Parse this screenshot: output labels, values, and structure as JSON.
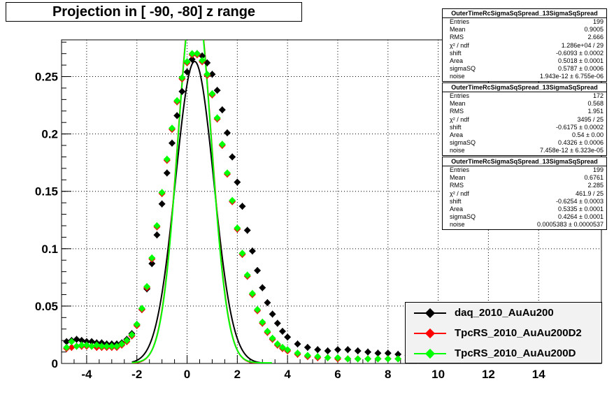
{
  "title": "Projection in [ -90, -80] z range",
  "stats": [
    {
      "name": "OuterTimeRcSigmaSqSpread_13SigmaSqSpread",
      "rows": [
        [
          "Entries",
          "199"
        ],
        [
          "Mean",
          "0.9005"
        ],
        [
          "RMS",
          "2.666"
        ],
        [
          "χ² / ndf",
          "1.286e+04 / 29"
        ],
        [
          "shift",
          "-0.6093 ± 0.0002"
        ],
        [
          "Area",
          "0.5018 ± 0.0001"
        ],
        [
          "sigmaSQ",
          "0.5787 ± 0.0006"
        ],
        [
          "noise",
          "1.943e-12 ± 6.755e-06"
        ]
      ]
    },
    {
      "name": "OuterTimeRcSigmaSqSpread_13SigmaSqSpread",
      "rows": [
        [
          "Entries",
          "172"
        ],
        [
          "Mean",
          "0.568"
        ],
        [
          "RMS",
          "1.951"
        ],
        [
          "χ² / ndf",
          "3495 / 25"
        ],
        [
          "shift",
          "-0.6175 ± 0.0002"
        ],
        [
          "Area",
          "0.54 ± 0.00"
        ],
        [
          "sigmaSQ",
          "0.4326 ± 0.0006"
        ],
        [
          "noise",
          "7.458e-12 ± 6.323e-05"
        ]
      ]
    },
    {
      "name": "OuterTimeRcSigmaSqSpread_13SigmaSqSpread",
      "rows": [
        [
          "Entries",
          "199"
        ],
        [
          "Mean",
          "0.6761"
        ],
        [
          "RMS",
          "2.285"
        ],
        [
          "χ² / ndf",
          "461.9 / 25"
        ],
        [
          "shift",
          "-0.6254 ± 0.0003"
        ],
        [
          "Area",
          "0.5335 ± 0.0001"
        ],
        [
          "sigmaSQ",
          "0.4264 ± 0.0001"
        ],
        [
          "noise",
          "0.0005383 ± 0.0000537"
        ]
      ]
    }
  ],
  "legend": [
    {
      "label": "daq_2010_AuAu200",
      "color": "#000000"
    },
    {
      "label": "TpcRS_2010_AuAu200D2",
      "color": "#ff0000"
    },
    {
      "label": "TpcRS_2010_AuAu200D",
      "color": "#00ff00"
    }
  ],
  "chart_data": {
    "type": "scatter",
    "title": "Projection in [ -90, -80] z range",
    "xlim": [
      -5,
      16.5
    ],
    "ylim": [
      0,
      0.282
    ],
    "xticks": [
      "-4",
      "-2",
      "0",
      "2",
      "4",
      "6",
      "8",
      "10",
      "12",
      "14"
    ],
    "yticks": [
      "0",
      "0.05",
      "0.1",
      "0.15",
      "0.2",
      "0.25"
    ],
    "grid": true,
    "legend_position": "bottom-right",
    "series": [
      {
        "name": "daq_2010_AuAu200",
        "color": "#000000",
        "x": [
          -4.8,
          -4.6,
          -4.4,
          -4.2,
          -4.0,
          -3.8,
          -3.6,
          -3.4,
          -3.2,
          -3.0,
          -2.8,
          -2.6,
          -2.4,
          -2.2,
          -2.0,
          -1.8,
          -1.6,
          -1.4,
          -1.2,
          -1.0,
          -0.8,
          -0.6,
          -0.4,
          -0.2,
          0.0,
          0.2,
          0.4,
          0.6,
          0.8,
          1.0,
          1.2,
          1.4,
          1.6,
          1.8,
          2.0,
          2.2,
          2.4,
          2.6,
          2.8,
          3.0,
          3.2,
          3.4,
          3.6,
          3.8,
          4.0,
          4.4,
          4.8,
          5.2,
          5.6,
          6.0,
          6.4,
          6.8,
          7.2,
          7.6,
          8.0,
          8.4,
          8.8,
          9.2,
          9.6
        ],
        "y": [
          0.019,
          0.02,
          0.021,
          0.02,
          0.019,
          0.019,
          0.018,
          0.018,
          0.017,
          0.017,
          0.017,
          0.018,
          0.021,
          0.026,
          0.034,
          0.047,
          0.065,
          0.087,
          0.112,
          0.139,
          0.166,
          0.192,
          0.216,
          0.237,
          0.254,
          0.265,
          0.27,
          0.268,
          0.262,
          0.252,
          0.238,
          0.221,
          0.201,
          0.18,
          0.158,
          0.137,
          0.116,
          0.098,
          0.081,
          0.066,
          0.053,
          0.043,
          0.035,
          0.028,
          0.023,
          0.017,
          0.014,
          0.012,
          0.011,
          0.012,
          0.012,
          0.011,
          0.01,
          0.009,
          0.009,
          0.008,
          0.007,
          0.006,
          0.006
        ]
      },
      {
        "name": "TpcRS_2010_AuAu200D2",
        "color": "#ff0000",
        "x": [
          -4.8,
          -4.6,
          -4.4,
          -4.2,
          -4.0,
          -3.8,
          -3.6,
          -3.4,
          -3.2,
          -3.0,
          -2.8,
          -2.6,
          -2.4,
          -2.2,
          -2.0,
          -1.8,
          -1.6,
          -1.4,
          -1.2,
          -1.0,
          -0.8,
          -0.6,
          -0.4,
          -0.2,
          0.0,
          0.2,
          0.4,
          0.6,
          0.8,
          1.0,
          1.2,
          1.4,
          1.6,
          1.8,
          2.0,
          2.2,
          2.4,
          2.6,
          2.8,
          3.0,
          3.2,
          3.4,
          3.6,
          3.8,
          4.0,
          4.4,
          4.8,
          5.2,
          5.6,
          6.0,
          6.4,
          6.8,
          7.2,
          7.6,
          8.0,
          8.4,
          8.8,
          9.2
        ],
        "y": [
          0.013,
          0.014,
          0.015,
          0.015,
          0.015,
          0.015,
          0.014,
          0.014,
          0.014,
          0.014,
          0.014,
          0.016,
          0.019,
          0.024,
          0.033,
          0.047,
          0.066,
          0.091,
          0.119,
          0.148,
          0.177,
          0.204,
          0.228,
          0.248,
          0.262,
          0.269,
          0.269,
          0.263,
          0.251,
          0.234,
          0.213,
          0.19,
          0.165,
          0.141,
          0.117,
          0.095,
          0.076,
          0.06,
          0.046,
          0.035,
          0.027,
          0.021,
          0.016,
          0.013,
          0.011,
          0.008,
          0.006,
          0.005,
          0.005,
          0.004,
          0.004,
          0.004,
          0.004,
          0.004,
          0.004,
          0.004,
          0.003,
          0.003
        ]
      },
      {
        "name": "TpcRS_2010_AuAu200D",
        "color": "#00ff00",
        "x": [
          -4.8,
          -4.6,
          -4.4,
          -4.2,
          -4.0,
          -3.8,
          -3.6,
          -3.4,
          -3.2,
          -3.0,
          -2.8,
          -2.6,
          -2.4,
          -2.2,
          -2.0,
          -1.8,
          -1.6,
          -1.4,
          -1.2,
          -1.0,
          -0.8,
          -0.6,
          -0.4,
          -0.2,
          0.0,
          0.2,
          0.4,
          0.6,
          0.8,
          1.0,
          1.2,
          1.4,
          1.6,
          1.8,
          2.0,
          2.2,
          2.4,
          2.6,
          2.8,
          3.0,
          3.2,
          3.4,
          3.6,
          3.8,
          4.0,
          4.4,
          4.8,
          5.2,
          5.6,
          6.0,
          6.4,
          6.8,
          7.2,
          7.6,
          8.0,
          8.4,
          8.8,
          9.2
        ],
        "y": [
          0.014,
          0.019,
          0.015,
          0.016,
          0.016,
          0.015,
          0.016,
          0.015,
          0.015,
          0.015,
          0.015,
          0.017,
          0.02,
          0.025,
          0.034,
          0.048,
          0.067,
          0.092,
          0.12,
          0.149,
          0.178,
          0.205,
          0.229,
          0.249,
          0.263,
          0.27,
          0.27,
          0.264,
          0.252,
          0.235,
          0.214,
          0.191,
          0.166,
          0.142,
          0.118,
          0.096,
          0.077,
          0.061,
          0.047,
          0.036,
          0.028,
          0.022,
          0.017,
          0.014,
          0.012,
          0.009,
          0.007,
          0.006,
          0.005,
          0.005,
          0.004,
          0.004,
          0.004,
          0.004,
          0.004,
          0.004,
          0.003,
          0.003
        ]
      }
    ],
    "fits": [
      {
        "color": "#000000",
        "shift": -0.6093,
        "area": 0.5018,
        "sigmaSQ": 0.5787,
        "noise": 0.0
      },
      {
        "color": "#ff0000",
        "shift": -0.6175,
        "area": 0.54,
        "sigmaSQ": 0.4326,
        "noise": 0.0
      },
      {
        "color": "#00ff00",
        "shift": -0.6254,
        "area": 0.5335,
        "sigmaSQ": 0.4264,
        "noise": 0.0005
      }
    ]
  }
}
